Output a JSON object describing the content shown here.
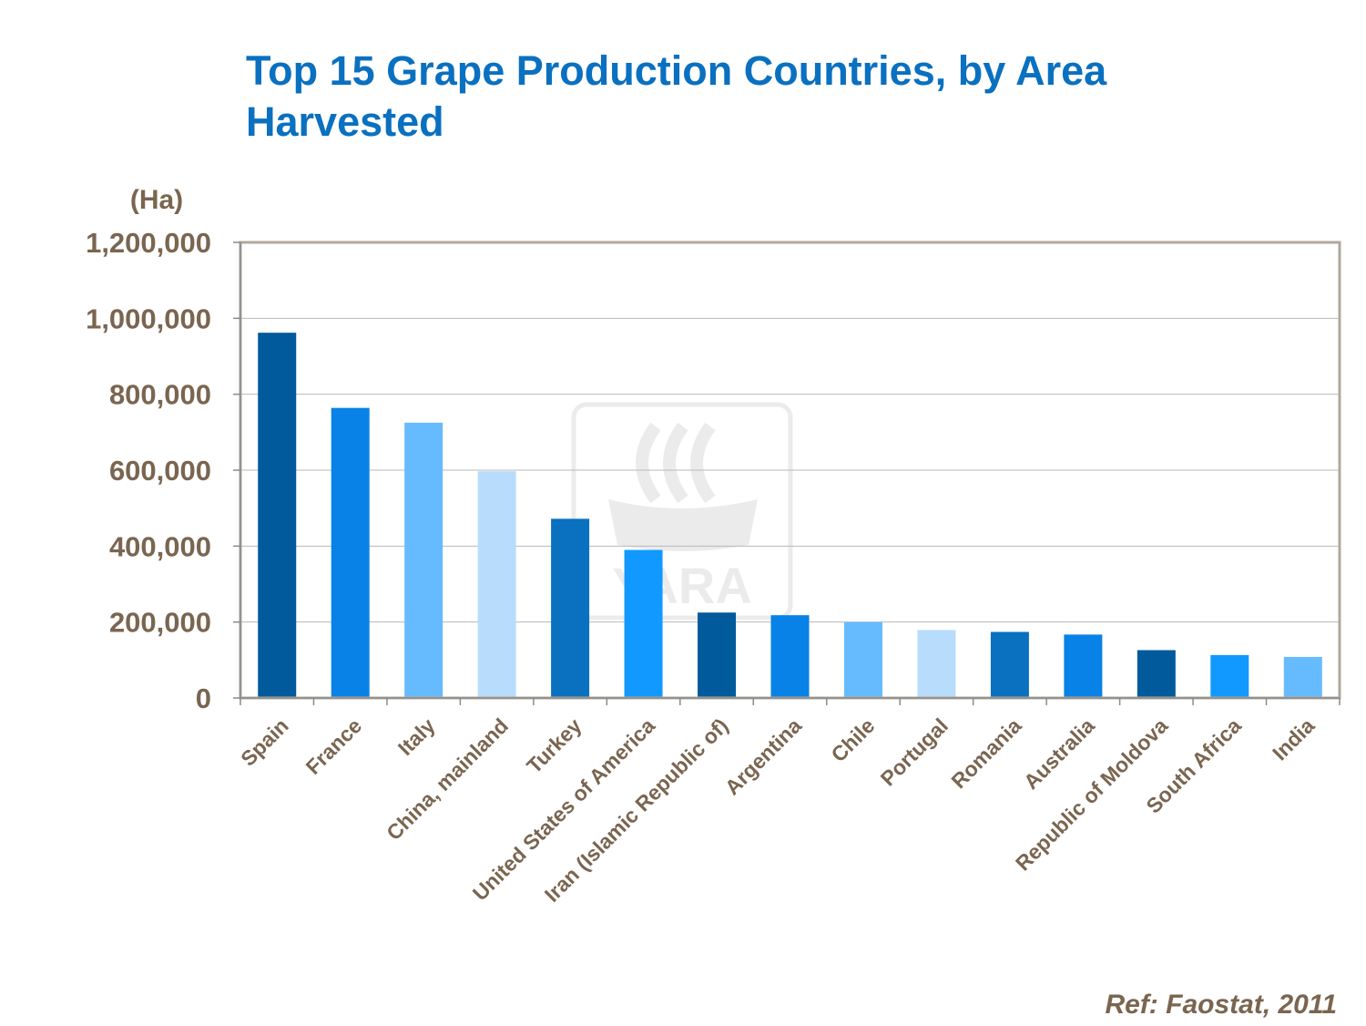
{
  "title": "Top 15 Grape Production Countries, by Area Harvested",
  "reference": "Ref: Faostat, 2011",
  "watermark": "YARA",
  "colors": {
    "title": "#0a70c0",
    "axis_text": "#7a6550",
    "frame": "#b0a89c",
    "gridline": "#b8b8b8",
    "bar_palette": [
      "#005a9c",
      "#0882e6",
      "#66bbff",
      "#b8dcfc",
      "#0a70c0",
      "#1199ff"
    ]
  },
  "chart_data": {
    "type": "bar",
    "ylabel": "(Ha)",
    "xlabel": "",
    "ylim": [
      0,
      1200000
    ],
    "yticks": [
      0,
      200000,
      400000,
      600000,
      800000,
      1000000,
      1200000
    ],
    "ytick_labels": [
      "0",
      "200,000",
      "400,000",
      "600,000",
      "800,000",
      "1,000,000",
      "1,200,000"
    ],
    "grid": true,
    "categories": [
      "Spain",
      "France",
      "Italy",
      "China, mainland",
      "Turkey",
      "United States of America",
      "Iran (Islamic Republic of)",
      "Argentina",
      "Chile",
      "Portugal",
      "Romania",
      "Australia",
      "Republic of Moldova",
      "South Africa",
      "India"
    ],
    "values": [
      962000,
      764000,
      725000,
      597000,
      472000,
      390000,
      225000,
      218000,
      200000,
      179000,
      174000,
      167000,
      126000,
      113000,
      108000
    ],
    "bar_colors": [
      "#005a9c",
      "#0882e6",
      "#66bbff",
      "#b8dcfc",
      "#0a70c0",
      "#1199ff",
      "#005a9c",
      "#0882e6",
      "#66bbff",
      "#b8dcfc",
      "#0a70c0",
      "#0882e6",
      "#005a9c",
      "#1199ff",
      "#66bbff"
    ]
  }
}
